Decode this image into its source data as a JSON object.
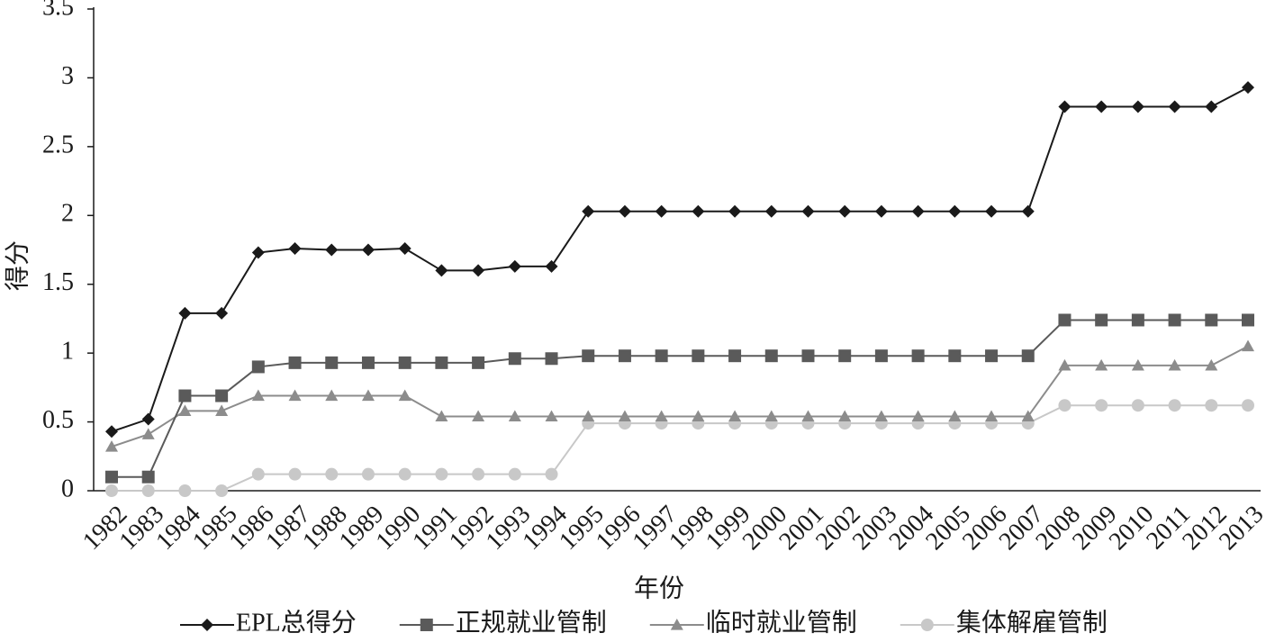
{
  "chart_data": {
    "type": "line",
    "x_label": "年份",
    "y_label": "得分",
    "categories": [
      "1982",
      "1983",
      "1984",
      "1985",
      "1986",
      "1987",
      "1988",
      "1989",
      "1990",
      "1991",
      "1992",
      "1993",
      "1994",
      "1995",
      "1996",
      "1997",
      "1998",
      "1999",
      "2000",
      "2001",
      "2002",
      "2003",
      "2004",
      "2005",
      "2006",
      "2007",
      "2008",
      "2009",
      "2010",
      "2011",
      "2012",
      "2013"
    ],
    "series": [
      {
        "name": "EPL总得分",
        "color": "#1a1a1a",
        "marker": "diamond",
        "values": [
          0.43,
          0.52,
          1.29,
          1.29,
          1.73,
          1.76,
          1.75,
          1.75,
          1.76,
          1.6,
          1.6,
          1.63,
          1.63,
          2.03,
          2.03,
          2.03,
          2.03,
          2.03,
          2.03,
          2.03,
          2.03,
          2.03,
          2.03,
          2.03,
          2.03,
          2.03,
          2.79,
          2.79,
          2.79,
          2.79,
          2.79,
          2.93
        ]
      },
      {
        "name": "正规就业管制",
        "color": "#5a5a5a",
        "marker": "square",
        "values": [
          0.1,
          0.1,
          0.69,
          0.69,
          0.9,
          0.93,
          0.93,
          0.93,
          0.93,
          0.93,
          0.93,
          0.96,
          0.96,
          0.98,
          0.98,
          0.98,
          0.98,
          0.98,
          0.98,
          0.98,
          0.98,
          0.98,
          0.98,
          0.98,
          0.98,
          0.98,
          1.24,
          1.24,
          1.24,
          1.24,
          1.24,
          1.24
        ]
      },
      {
        "name": "临时就业管制",
        "color": "#8c8c8c",
        "marker": "triangle",
        "values": [
          0.32,
          0.41,
          0.58,
          0.58,
          0.69,
          0.69,
          0.69,
          0.69,
          0.69,
          0.54,
          0.54,
          0.54,
          0.54,
          0.54,
          0.54,
          0.54,
          0.54,
          0.54,
          0.54,
          0.54,
          0.54,
          0.54,
          0.54,
          0.54,
          0.54,
          0.54,
          0.91,
          0.91,
          0.91,
          0.91,
          0.91,
          1.05
        ]
      },
      {
        "name": "集体解雇管制",
        "color": "#c8c8c8",
        "marker": "circle",
        "values": [
          0,
          0,
          0,
          0,
          0.12,
          0.12,
          0.12,
          0.12,
          0.12,
          0.12,
          0.12,
          0.12,
          0.12,
          0.49,
          0.49,
          0.49,
          0.49,
          0.49,
          0.49,
          0.49,
          0.49,
          0.49,
          0.49,
          0.49,
          0.49,
          0.49,
          0.62,
          0.62,
          0.62,
          0.62,
          0.62,
          0.62
        ]
      }
    ],
    "ylim": [
      0,
      3.5
    ],
    "yticks": [
      0,
      0.5,
      1,
      1.5,
      2,
      2.5,
      3,
      3.5
    ],
    "grid": false,
    "legend": "bottom"
  }
}
